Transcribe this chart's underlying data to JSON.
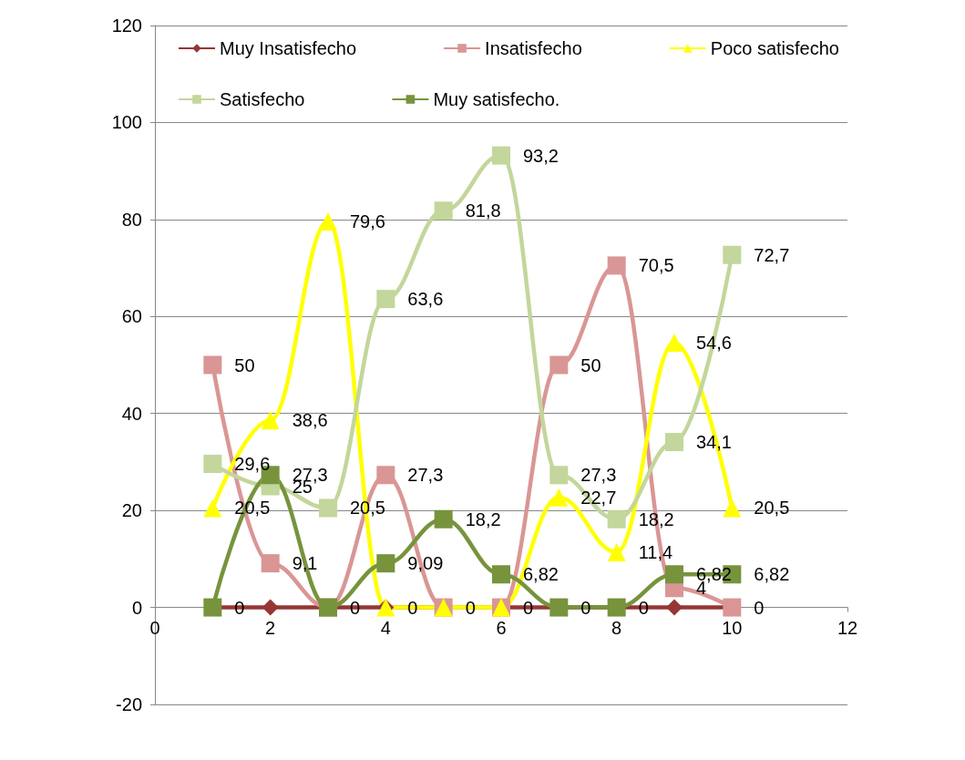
{
  "chart_data": {
    "type": "line",
    "x": [
      1,
      2,
      3,
      4,
      5,
      6,
      7,
      8,
      9,
      10
    ],
    "series": [
      {
        "name": "Muy Insatisfecho",
        "color": "#953735",
        "marker": "diamond",
        "values": [
          0,
          0,
          0,
          0,
          0,
          0,
          0,
          0,
          0,
          0
        ],
        "value_labels": [
          null,
          null,
          null,
          null,
          null,
          null,
          null,
          null,
          null,
          null
        ]
      },
      {
        "name": "Insatisfecho",
        "color": "#d99694",
        "marker": "square",
        "values": [
          50,
          9.1,
          0,
          27.3,
          0,
          0,
          50,
          70.5,
          4,
          0
        ],
        "value_labels": [
          "50",
          "9,1",
          null,
          "27,3",
          null,
          null,
          "50",
          "70,5",
          "4",
          "0"
        ]
      },
      {
        "name": "Poco satisfecho",
        "color": "#ffff00",
        "marker": "triangle",
        "values": [
          20.5,
          38.6,
          79.6,
          0,
          0,
          0,
          22.7,
          11.4,
          54.6,
          20.5
        ],
        "value_labels": [
          "20,5",
          "38,6",
          "79,6",
          "0",
          "0",
          "0",
          "22,7",
          "11,4",
          "54,6",
          "20,5"
        ]
      },
      {
        "name": "Satisfecho",
        "color": "#c3d69b",
        "marker": "square",
        "values": [
          29.6,
          25,
          20.5,
          63.6,
          81.8,
          93.2,
          27.3,
          18.2,
          34.1,
          72.7
        ],
        "value_labels": [
          "29,6",
          "25",
          "20,5",
          "63,6",
          "81,8",
          "93,2",
          "27,3",
          "18,2",
          "34,1",
          "72,7"
        ]
      },
      {
        "name": "Muy satisfecho.",
        "color": "#77933c",
        "marker": "square",
        "values": [
          0,
          27.3,
          0,
          9.09,
          18.2,
          6.82,
          0,
          0,
          6.82,
          6.82
        ],
        "value_labels": [
          "0",
          "27,3",
          "0",
          "9,09",
          "18,2",
          "6,82",
          "0",
          "0",
          "6,82",
          "6,82"
        ]
      }
    ],
    "xlim": [
      0,
      12
    ],
    "xticks": [
      0,
      2,
      4,
      6,
      8,
      10,
      12
    ],
    "ylim": [
      -20,
      120
    ],
    "yticks": [
      -20,
      0,
      20,
      40,
      60,
      80,
      100,
      120
    ],
    "grid": "y",
    "legend": "top"
  }
}
